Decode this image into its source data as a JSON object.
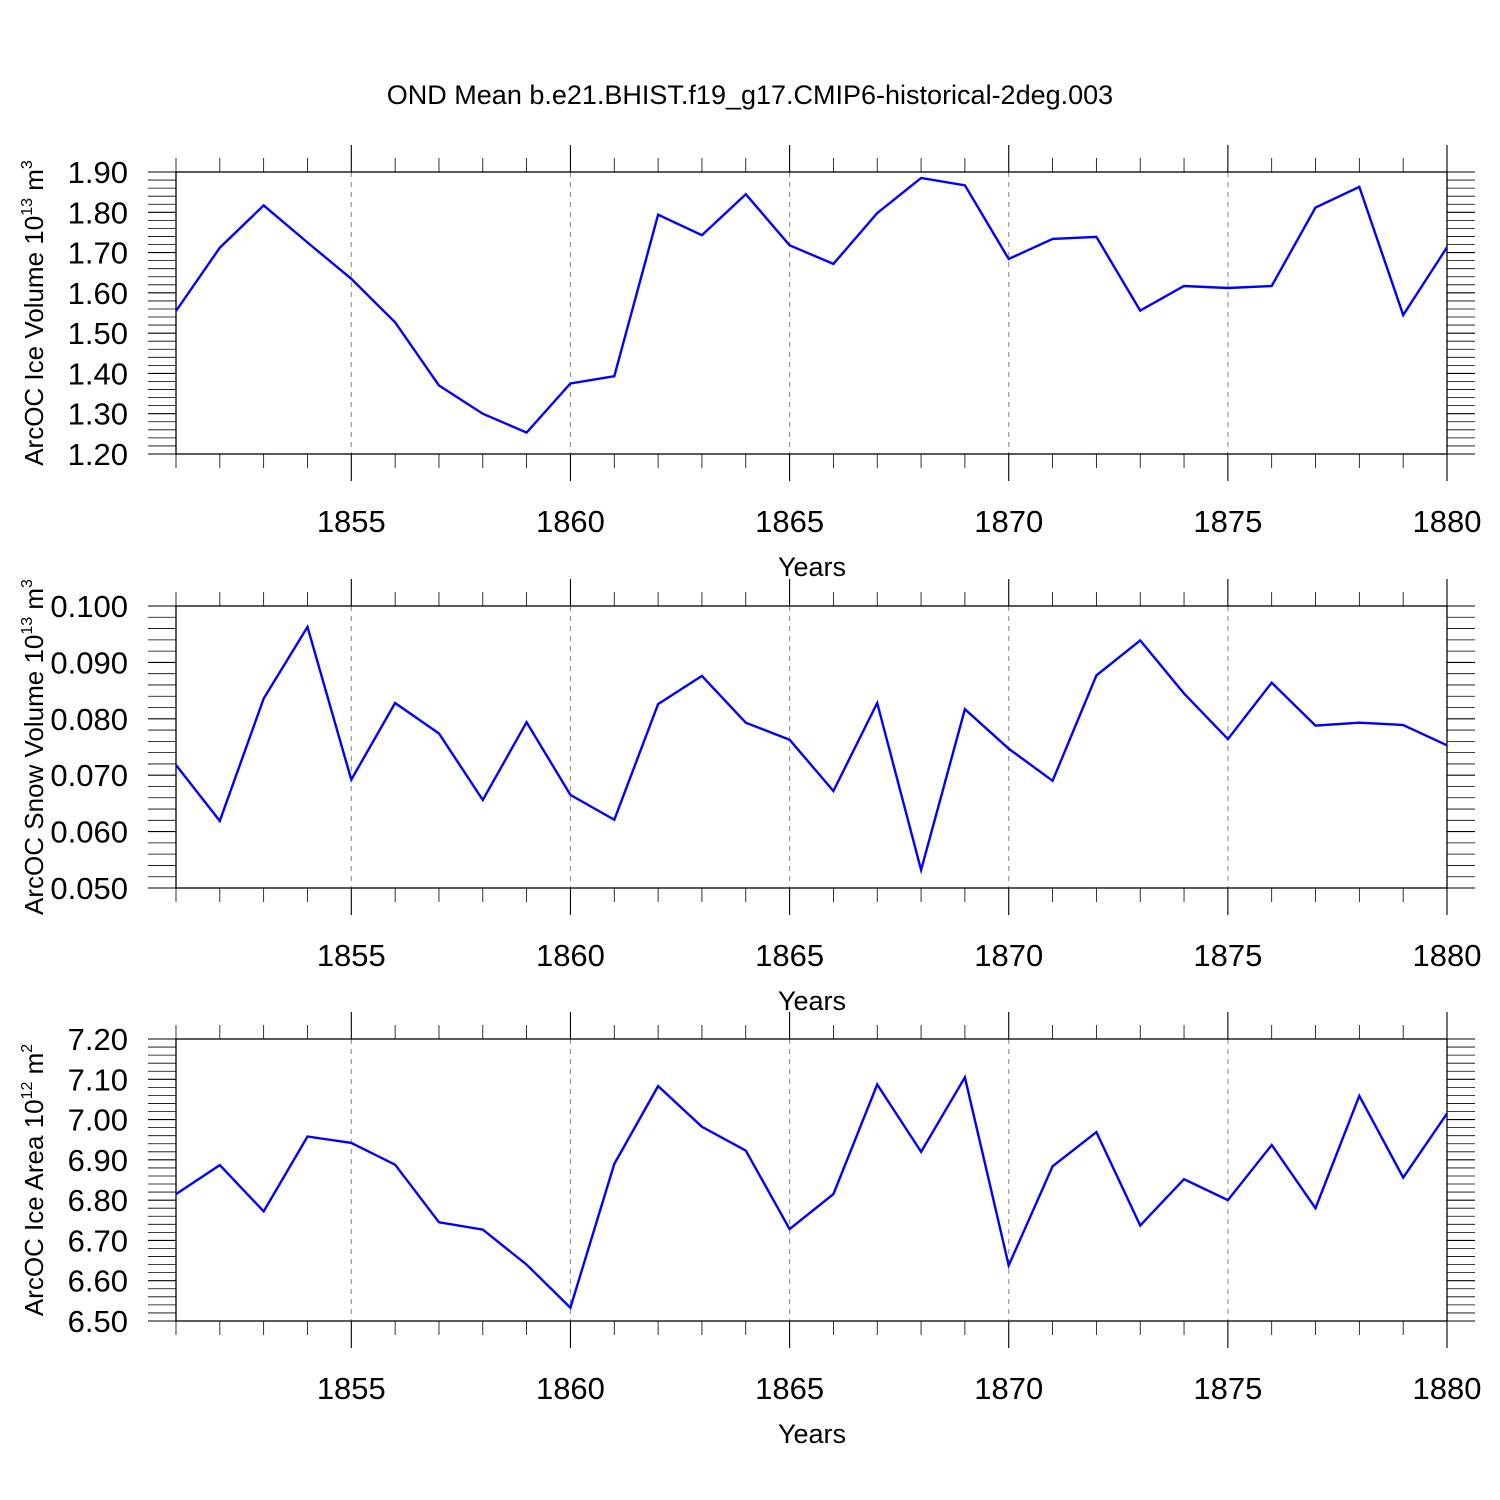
{
  "title": "OND Mean b.e21.BHIST.f19_g17.CMIP6-historical-2deg.003",
  "chart_data": [
    {
      "type": "line",
      "id": "ice-volume",
      "ylabel": "ArcOC Ice Volume 10",
      "ylabel_exp": "13",
      "ylabel_unit": "m",
      "ylabel_unit_exp": "3",
      "xlabel": "Years",
      "xlim": [
        1851,
        1880
      ],
      "ylim": [
        1.2,
        1.9
      ],
      "yticks": [
        "1.20",
        "1.30",
        "1.40",
        "1.50",
        "1.60",
        "1.70",
        "1.80",
        "1.90"
      ],
      "xticks": [
        "1855",
        "1860",
        "1865",
        "1870",
        "1875",
        "1880"
      ],
      "line_color": "#0000ff",
      "x": [
        1851,
        1852,
        1853,
        1854,
        1855,
        1856,
        1857,
        1858,
        1859,
        1860,
        1861,
        1862,
        1863,
        1864,
        1865,
        1866,
        1867,
        1868,
        1869,
        1870,
        1871,
        1872,
        1873,
        1874,
        1875,
        1876,
        1877,
        1878,
        1879,
        1880
      ],
      "values": [
        1.555,
        1.712,
        1.817,
        1.725,
        1.635,
        1.527,
        1.37,
        1.3,
        1.253,
        1.375,
        1.393,
        1.794,
        1.743,
        1.845,
        1.718,
        1.672,
        1.798,
        1.885,
        1.867,
        1.684,
        1.734,
        1.739,
        1.556,
        1.617,
        1.612,
        1.617,
        1.812,
        1.863,
        1.545,
        1.713
      ]
    },
    {
      "type": "line",
      "id": "snow-volume",
      "ylabel": "ArcOC Snow Volume 10",
      "ylabel_exp": "13",
      "ylabel_unit": "m",
      "ylabel_unit_exp": "3",
      "xlabel": "Years",
      "xlim": [
        1851,
        1880
      ],
      "ylim": [
        0.05,
        0.1
      ],
      "yticks": [
        "0.050",
        "0.060",
        "0.070",
        "0.080",
        "0.090",
        "0.100"
      ],
      "xticks": [
        "1855",
        "1860",
        "1865",
        "1870",
        "1875",
        "1880"
      ],
      "line_color": "#0000ff",
      "x": [
        1851,
        1852,
        1853,
        1854,
        1855,
        1856,
        1857,
        1858,
        1859,
        1860,
        1861,
        1862,
        1863,
        1864,
        1865,
        1866,
        1867,
        1868,
        1869,
        1870,
        1871,
        1872,
        1873,
        1874,
        1875,
        1876,
        1877,
        1878,
        1879,
        1880
      ],
      "values": [
        0.0718,
        0.0619,
        0.0836,
        0.0963,
        0.0692,
        0.0828,
        0.0774,
        0.0656,
        0.0794,
        0.0665,
        0.0621,
        0.0826,
        0.0876,
        0.0793,
        0.0763,
        0.0672,
        0.0828,
        0.0532,
        0.0817,
        0.0747,
        0.069,
        0.0877,
        0.0939,
        0.0845,
        0.0764,
        0.0864,
        0.0788,
        0.0793,
        0.0789,
        0.0753
      ]
    },
    {
      "type": "line",
      "id": "ice-area",
      "ylabel": "ArcOC Ice Area 10",
      "ylabel_exp": "12",
      "ylabel_unit": "m",
      "ylabel_unit_exp": "2",
      "xlabel": "Years",
      "xlim": [
        1851,
        1880
      ],
      "ylim": [
        6.5,
        7.2
      ],
      "yticks": [
        "6.50",
        "6.60",
        "6.70",
        "6.80",
        "6.90",
        "7.00",
        "7.10",
        "7.20"
      ],
      "xticks": [
        "1855",
        "1860",
        "1865",
        "1870",
        "1875",
        "1880"
      ],
      "line_color": "#0000ff",
      "x": [
        1851,
        1852,
        1853,
        1854,
        1855,
        1856,
        1857,
        1858,
        1859,
        1860,
        1861,
        1862,
        1863,
        1864,
        1865,
        1866,
        1867,
        1868,
        1869,
        1870,
        1871,
        1872,
        1873,
        1874,
        1875,
        1876,
        1877,
        1878,
        1879,
        1880
      ],
      "values": [
        6.815,
        6.887,
        6.772,
        6.958,
        6.942,
        6.888,
        6.745,
        6.727,
        6.64,
        6.533,
        6.89,
        7.083,
        6.982,
        6.923,
        6.728,
        6.815,
        7.087,
        6.92,
        7.105,
        6.638,
        6.884,
        6.969,
        6.737,
        6.852,
        6.8,
        6.937,
        6.78,
        7.059,
        6.856,
        7.015
      ]
    }
  ]
}
